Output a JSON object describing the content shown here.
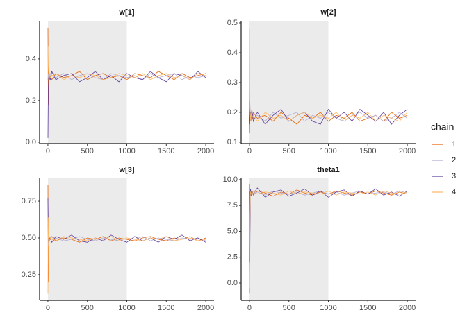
{
  "legend_title": "chain",
  "chart_data": [
    {
      "type": "line",
      "title": "w[1]",
      "shade": [
        0,
        1000
      ],
      "x": [
        1,
        5,
        10,
        15,
        20,
        30,
        50,
        100,
        200,
        300,
        400,
        500,
        600,
        700,
        800,
        900,
        1000,
        1100,
        1200,
        1300,
        1400,
        1500,
        1600,
        1700,
        1800,
        1900,
        2000
      ],
      "series": [
        {
          "name": "1",
          "color": "#e66101",
          "values": [
            0.55,
            0.18,
            0.34,
            0.31,
            0.33,
            0.32,
            0.3,
            0.33,
            0.31,
            0.32,
            0.34,
            0.3,
            0.32,
            0.33,
            0.31,
            0.32,
            0.3,
            0.33,
            0.32,
            0.31,
            0.34,
            0.32,
            0.3,
            0.33,
            0.31,
            0.32,
            0.33
          ]
        },
        {
          "name": "2",
          "color": "#b2abd2",
          "values": [
            0.3,
            0.33,
            0.31,
            0.32,
            0.3,
            0.33,
            0.32,
            0.31,
            0.33,
            0.3,
            0.32,
            0.33,
            0.31,
            0.3,
            0.33,
            0.32,
            0.31,
            0.32,
            0.3,
            0.33,
            0.31,
            0.32,
            0.33,
            0.3,
            0.32,
            0.31,
            0.32
          ]
        },
        {
          "name": "3",
          "color": "#5e3c99",
          "values": [
            0.02,
            0.25,
            0.3,
            0.33,
            0.31,
            0.3,
            0.34,
            0.3,
            0.32,
            0.33,
            0.29,
            0.31,
            0.34,
            0.3,
            0.32,
            0.29,
            0.33,
            0.31,
            0.3,
            0.34,
            0.31,
            0.29,
            0.33,
            0.32,
            0.3,
            0.34,
            0.31
          ]
        },
        {
          "name": "4",
          "color": "#fdb863",
          "values": [
            0.46,
            0.36,
            0.32,
            0.3,
            0.33,
            0.31,
            0.32,
            0.33,
            0.3,
            0.32,
            0.31,
            0.33,
            0.32,
            0.3,
            0.31,
            0.33,
            0.32,
            0.31,
            0.33,
            0.3,
            0.32,
            0.33,
            0.31,
            0.32,
            0.3,
            0.33,
            0.32
          ]
        }
      ],
      "xlim": [
        -105,
        2105
      ],
      "ylim": [
        -0.007,
        0.583
      ],
      "xticks": [
        0,
        500,
        1000,
        1500,
        2000
      ],
      "yticks": [
        {
          "value": 0,
          "label": "0.0"
        },
        0.2,
        0.4
      ]
    },
    {
      "type": "line",
      "title": "w[2]",
      "shade": [
        0,
        1000
      ],
      "x": [
        1,
        5,
        10,
        15,
        20,
        30,
        50,
        100,
        200,
        300,
        400,
        500,
        600,
        700,
        800,
        900,
        1000,
        1100,
        1200,
        1300,
        1400,
        1500,
        1600,
        1700,
        1800,
        1900,
        2000
      ],
      "series": [
        {
          "name": "1",
          "color": "#e66101",
          "values": [
            0.33,
            0.16,
            0.2,
            0.18,
            0.19,
            0.17,
            0.2,
            0.18,
            0.19,
            0.17,
            0.2,
            0.18,
            0.16,
            0.19,
            0.18,
            0.2,
            0.17,
            0.19,
            0.18,
            0.2,
            0.17,
            0.18,
            0.19,
            0.17,
            0.2,
            0.18,
            0.19
          ]
        },
        {
          "name": "2",
          "color": "#b2abd2",
          "values": [
            0.25,
            0.2,
            0.18,
            0.19,
            0.17,
            0.2,
            0.18,
            0.19,
            0.17,
            0.2,
            0.18,
            0.19,
            0.2,
            0.17,
            0.19,
            0.18,
            0.2,
            0.18,
            0.17,
            0.19,
            0.2,
            0.18,
            0.19,
            0.17,
            0.18,
            0.2,
            0.18
          ]
        },
        {
          "name": "3",
          "color": "#5e3c99",
          "values": [
            0.13,
            0.24,
            0.17,
            0.2,
            0.18,
            0.21,
            0.17,
            0.2,
            0.16,
            0.19,
            0.21,
            0.17,
            0.19,
            0.2,
            0.17,
            0.16,
            0.21,
            0.18,
            0.2,
            0.17,
            0.21,
            0.19,
            0.17,
            0.2,
            0.16,
            0.19,
            0.21
          ]
        },
        {
          "name": "4",
          "color": "#fdb863",
          "values": [
            0.48,
            0.22,
            0.19,
            0.17,
            0.2,
            0.18,
            0.19,
            0.17,
            0.2,
            0.18,
            0.19,
            0.17,
            0.19,
            0.2,
            0.18,
            0.19,
            0.18,
            0.2,
            0.17,
            0.19,
            0.18,
            0.2,
            0.17,
            0.19,
            0.18,
            0.17,
            0.2
          ]
        }
      ],
      "xlim": [
        -105,
        2105
      ],
      "ylim": [
        0.095,
        0.507
      ],
      "xticks": [
        0,
        500,
        1000,
        1500,
        2000
      ],
      "yticks": [
        0.1,
        0.2,
        0.3,
        0.4,
        0.5
      ]
    },
    {
      "type": "line",
      "title": "w[3]",
      "shade": [
        0,
        1000
      ],
      "x": [
        1,
        5,
        10,
        15,
        20,
        30,
        50,
        100,
        200,
        300,
        400,
        500,
        600,
        700,
        800,
        900,
        1000,
        1100,
        1200,
        1300,
        1400,
        1500,
        1600,
        1700,
        1800,
        1900,
        2000
      ],
      "series": [
        {
          "name": "1",
          "color": "#e66101",
          "values": [
            0.86,
            0.2,
            0.5,
            0.48,
            0.5,
            0.49,
            0.51,
            0.48,
            0.5,
            0.49,
            0.47,
            0.5,
            0.49,
            0.51,
            0.48,
            0.5,
            0.49,
            0.48,
            0.5,
            0.51,
            0.49,
            0.48,
            0.5,
            0.49,
            0.51,
            0.48,
            0.5
          ]
        },
        {
          "name": "2",
          "color": "#b2abd2",
          "values": [
            0.6,
            0.45,
            0.49,
            0.5,
            0.48,
            0.5,
            0.49,
            0.5,
            0.48,
            0.49,
            0.51,
            0.49,
            0.48,
            0.5,
            0.49,
            0.48,
            0.5,
            0.49,
            0.51,
            0.48,
            0.5,
            0.49,
            0.48,
            0.5,
            0.49,
            0.5,
            0.48
          ]
        },
        {
          "name": "3",
          "color": "#5e3c99",
          "values": [
            0.77,
            0.55,
            0.47,
            0.51,
            0.48,
            0.5,
            0.47,
            0.51,
            0.49,
            0.52,
            0.48,
            0.47,
            0.5,
            0.48,
            0.52,
            0.49,
            0.47,
            0.51,
            0.48,
            0.5,
            0.47,
            0.51,
            0.49,
            0.52,
            0.48,
            0.5,
            0.47
          ]
        },
        {
          "name": "4",
          "color": "#fdb863",
          "values": [
            0.12,
            0.64,
            0.5,
            0.49,
            0.48,
            0.5,
            0.49,
            0.48,
            0.51,
            0.5,
            0.49,
            0.48,
            0.5,
            0.49,
            0.51,
            0.48,
            0.5,
            0.49,
            0.48,
            0.5,
            0.49,
            0.51,
            0.48,
            0.49,
            0.5,
            0.48,
            0.49
          ]
        }
      ],
      "xlim": [
        -105,
        2105
      ],
      "ylim": [
        0.075,
        0.906
      ],
      "xticks": [
        0,
        500,
        1000,
        1500,
        2000
      ],
      "yticks": [
        0.25,
        {
          "value": 0.5,
          "label": "0.50"
        },
        0.75
      ]
    },
    {
      "type": "line",
      "title": "theta1",
      "shade": [
        0,
        1000
      ],
      "x": [
        1,
        5,
        10,
        15,
        20,
        30,
        50,
        100,
        200,
        300,
        400,
        500,
        600,
        700,
        800,
        900,
        1000,
        1100,
        1200,
        1300,
        1400,
        1500,
        1600,
        1700,
        1800,
        1900,
        2000
      ],
      "series": [
        {
          "name": "1",
          "color": "#e66101",
          "values": [
            -1.0,
            4.0,
            8.5,
            8.9,
            8.6,
            8.8,
            8.5,
            8.9,
            8.7,
            8.4,
            8.8,
            8.6,
            9.0,
            8.7,
            8.5,
            8.8,
            8.6,
            8.9,
            8.7,
            8.5,
            8.8,
            8.6,
            8.9,
            8.7,
            8.5,
            8.8,
            8.6
          ]
        },
        {
          "name": "2",
          "color": "#b2abd2",
          "values": [
            1.8,
            7.0,
            8.8,
            8.6,
            8.9,
            8.7,
            8.6,
            8.8,
            8.5,
            8.9,
            8.7,
            8.6,
            8.8,
            8.5,
            8.7,
            8.9,
            8.6,
            8.8,
            8.5,
            8.7,
            8.9,
            8.6,
            8.7,
            8.8,
            8.6,
            8.9,
            8.7
          ]
        },
        {
          "name": "3",
          "color": "#5e3c99",
          "values": [
            9.6,
            2.0,
            8.7,
            9.1,
            8.4,
            8.9,
            8.6,
            9.2,
            8.3,
            8.8,
            9.0,
            8.4,
            8.7,
            9.1,
            8.5,
            8.9,
            8.3,
            8.8,
            9.0,
            8.4,
            8.9,
            8.6,
            9.1,
            8.5,
            8.8,
            8.4,
            8.9
          ]
        },
        {
          "name": "4",
          "color": "#fdb863",
          "values": [
            -0.5,
            6.0,
            8.6,
            8.8,
            8.7,
            8.5,
            8.9,
            8.6,
            8.8,
            8.7,
            8.5,
            8.9,
            8.6,
            8.8,
            8.7,
            8.6,
            8.9,
            8.5,
            8.8,
            8.7,
            8.6,
            8.8,
            8.5,
            8.9,
            8.7,
            8.6,
            8.8
          ]
        }
      ],
      "xlim": [
        -105,
        2105
      ],
      "ylim": [
        -1.68,
        10.13
      ],
      "xticks": [
        0,
        500,
        1000,
        1500,
        2000
      ],
      "yticks": [
        {
          "value": 0,
          "label": "0.0"
        },
        2.5,
        {
          "value": 5,
          "label": "5.0"
        },
        7.5,
        {
          "value": 10,
          "label": "10.0"
        }
      ]
    }
  ]
}
